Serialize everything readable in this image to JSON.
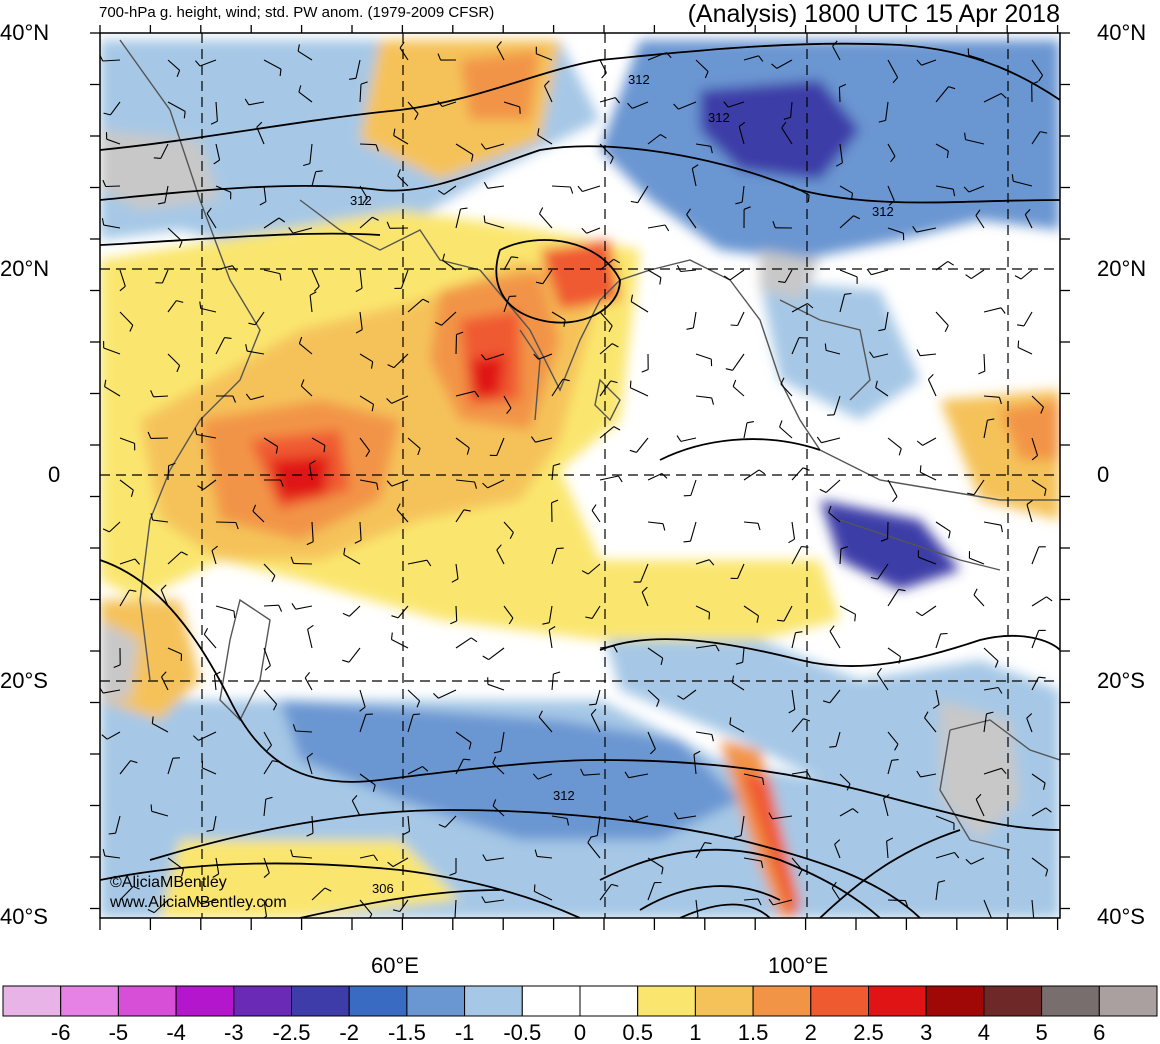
{
  "header": {
    "left_title": "700-hPa g. height, wind; std. PW anom. (1979-2009 CFSR)",
    "right_title": "(Analysis) 1800 UTC 15 Apr 2018"
  },
  "axes": {
    "lat_labels": [
      "40°N",
      "20°N",
      "0",
      "20°S",
      "40°S"
    ],
    "lon_labels": [
      "60°E",
      "100°E"
    ]
  },
  "contour_labels": [
    "312",
    "312",
    "312",
    "312",
    "312",
    "306"
  ],
  "credits": [
    "©AliciaMBentley",
    "www.AliciaMBentley.com"
  ],
  "colorbar": {
    "colors": [
      "#e8b4e8",
      "#e682e6",
      "#d74fd7",
      "#b316cc",
      "#6a2ab5",
      "#3d3ca8",
      "#3a6bc2",
      "#6a96d2",
      "#a6c8e6",
      "#ffffff",
      "#ffffff",
      "#fae66e",
      "#f5c25a",
      "#f29446",
      "#f05a30",
      "#e01414",
      "#a00808",
      "#6e2828",
      "#786e6e",
      "#aaa0a0"
    ],
    "labels": [
      "-6",
      "-5",
      "-4",
      "-3",
      "-2.5",
      "-2",
      "-1.5",
      "-1",
      "-0.5",
      "0",
      "0.5",
      "1",
      "1.5",
      "2",
      "2.5",
      "3",
      "4",
      "5",
      "6"
    ]
  }
}
